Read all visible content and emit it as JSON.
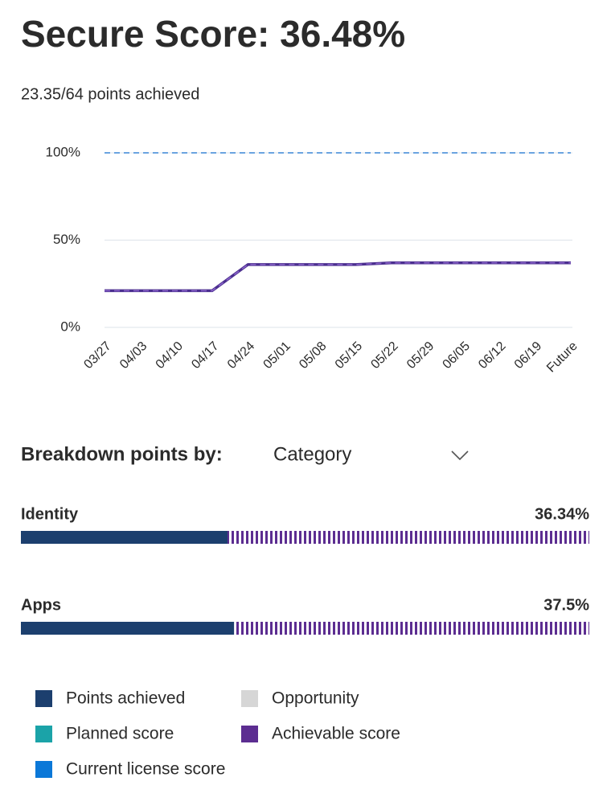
{
  "header": {
    "title": "Secure Score: 36.48%",
    "subtitle": "23.35/64 points achieved"
  },
  "chart_data": {
    "type": "line",
    "categories": [
      "03/27",
      "04/03",
      "04/10",
      "04/17",
      "04/24",
      "05/01",
      "05/08",
      "05/15",
      "05/22",
      "05/29",
      "06/05",
      "06/12",
      "06/19",
      "Future"
    ],
    "ylim": [
      0,
      100
    ],
    "yticks": [
      {
        "value": 0,
        "label": "0%"
      },
      {
        "value": 50,
        "label": "50%"
      },
      {
        "value": 100,
        "label": "100%"
      }
    ],
    "grid": true,
    "series": [
      {
        "name": "Points achieved",
        "color": "#4b2f8f",
        "dashed": false,
        "values": [
          21,
          21,
          21,
          21,
          36,
          36,
          36,
          36,
          37,
          37,
          37,
          37,
          37,
          37
        ]
      },
      {
        "name": "Achievable score",
        "color": "#8a63c9",
        "dashed": true,
        "values": [
          21,
          21,
          21,
          21,
          36,
          36,
          36,
          36,
          37,
          37,
          37,
          37,
          37,
          37
        ]
      },
      {
        "name": "Current license score",
        "color": "#3a86d6",
        "dashed": true,
        "values": [
          100,
          100,
          100,
          100,
          100,
          100,
          100,
          100,
          100,
          100,
          100,
          100,
          100,
          100
        ]
      }
    ]
  },
  "breakdown": {
    "label": "Breakdown points by:",
    "selected": "Category",
    "items": [
      {
        "name": "Identity",
        "value": 36.34,
        "value_label": "36.34%"
      },
      {
        "name": "Apps",
        "value": 37.5,
        "value_label": "37.5%"
      }
    ]
  },
  "legend": [
    {
      "name": "Points achieved",
      "color": "#1c3f6e"
    },
    {
      "name": "Opportunity",
      "color": "#d6d6d6"
    },
    {
      "name": "Planned score",
      "color": "#1ba3a8"
    },
    {
      "name": "Achievable score",
      "color": "#5c2d91"
    },
    {
      "name": "Current license score",
      "color": "#0b78d8"
    }
  ]
}
